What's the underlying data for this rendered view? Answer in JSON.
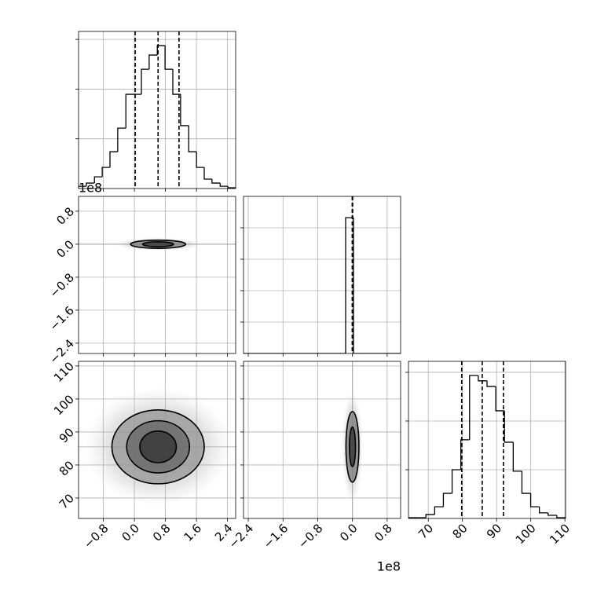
{
  "chart_data": [
    {
      "type": "histogram",
      "bins": [
        -1.44,
        -1.24,
        -1.03,
        -0.83,
        -0.63,
        -0.43,
        -0.22,
        -0.02,
        0.18,
        0.38,
        0.59,
        0.79,
        0.99,
        1.19,
        1.4,
        1.6,
        1.8,
        2.0,
        2.21,
        2.41,
        2.61
      ],
      "counts": [
        9,
        22,
        47,
        85,
        148,
        243,
        379,
        379,
        480,
        537,
        575,
        480,
        379,
        253,
        148,
        85,
        38,
        22,
        9,
        3
      ],
      "color": "#000000",
      "quantiles": [
        0.02,
        0.61,
        1.15
      ],
      "xlim": [
        -1.44,
        2.61
      ],
      "xticks": [
        -0.8,
        0,
        0.8,
        1.6,
        2.4
      ],
      "ylim": [
        0,
        632
      ],
      "yticks": [
        200,
        400,
        600
      ],
      "grid": true,
      "xtick_labels": false,
      "ytick_labels": false
    },
    {
      "type": "contour",
      "center": [
        0.61,
        0.0
      ],
      "contours": [
        {
          "rx": 0.71,
          "ry": 0.1
        },
        {
          "rx": 0.4,
          "ry": 0.06
        }
      ],
      "color": "#000000",
      "xlim": [
        -1.44,
        2.61
      ],
      "xticks": [
        -0.8,
        0,
        0.8,
        1.6,
        2.4
      ],
      "ylim": [
        -2.65,
        1.16
      ],
      "yticks": [
        {
          "value": -2.4,
          "label": "−2.4"
        },
        {
          "value": -1.6,
          "label": "−1.6"
        },
        {
          "value": -0.8,
          "label": "−0.8"
        },
        {
          "value": 0,
          "label": "0.0"
        },
        0.8
      ],
      "y_offset_text": "1e8",
      "grid": true,
      "xtick_labels": false,
      "ytick_labels": true
    },
    {
      "type": "histogram",
      "bins": [
        -2.51,
        -2.329,
        -2.148,
        -1.967,
        -1.786,
        -1.605,
        -1.424,
        -1.243,
        -1.062,
        -0.881,
        -0.7,
        -0.519,
        -0.338,
        -0.157,
        0.024,
        0.205,
        0.386,
        0.567,
        0.748,
        0.929,
        1.11
      ],
      "counts": [
        0,
        0,
        0,
        0,
        0,
        0,
        0,
        0,
        0,
        0,
        0,
        0,
        0,
        4321,
        0,
        0,
        0,
        0,
        0,
        0
      ],
      "color": "#000000",
      "quantiles": [
        -0.005,
        0.0,
        0.005
      ],
      "xlim": [
        -2.51,
        1.11
      ],
      "xticks": [
        -2.4,
        -1.6,
        -0.8,
        0,
        0.8
      ],
      "ylim": [
        0,
        5000
      ],
      "yticks": [
        1000,
        2000,
        3000,
        4000
      ],
      "grid": true,
      "xtick_labels": false,
      "ytick_labels": false
    },
    {
      "type": "contour",
      "center": [
        0.61,
        85.5
      ],
      "contours": [
        {
          "rx": 1.19,
          "ry": 11.2
        },
        {
          "rx": 0.81,
          "ry": 7.9
        },
        {
          "rx": 0.47,
          "ry": 4.8
        }
      ],
      "color": "#000000",
      "xlim": [
        -1.44,
        2.61
      ],
      "xticks": [
        {
          "value": -0.8,
          "label": "−0.8"
        },
        {
          "value": 0,
          "label": "0.0"
        },
        0.8,
        1.6,
        2.4
      ],
      "ylim": [
        63.8,
        111.4
      ],
      "yticks": [
        70,
        80,
        90,
        100,
        110
      ],
      "grid": true,
      "xtick_labels": true,
      "ytick_labels": true
    },
    {
      "type": "contour",
      "center": [
        0.0,
        85.5
      ],
      "contours": [
        {
          "rx": 0.15,
          "ry": 10.7
        },
        {
          "rx": 0.07,
          "ry": 6
        }
      ],
      "color": "#000000",
      "xlim": [
        -2.51,
        1.11
      ],
      "xticks": [
        {
          "value": -2.4,
          "label": "−2.4"
        },
        {
          "value": -1.6,
          "label": "−1.6"
        },
        {
          "value": -0.8,
          "label": "−0.8"
        },
        {
          "value": 0,
          "label": "0.0"
        },
        0.8
      ],
      "ylim": [
        63.8,
        111.4
      ],
      "yticks": [
        70,
        80,
        90,
        100,
        110
      ],
      "x_offset_text": "1e8",
      "grid": true,
      "xtick_labels": true,
      "ytick_labels": false
    },
    {
      "type": "histogram",
      "bins": [
        64.2,
        66.76,
        69.31,
        71.87,
        74.42,
        76.98,
        79.53,
        82.09,
        84.64,
        87.2,
        89.76,
        92.31,
        94.87,
        97.42,
        99.98,
        102.53,
        105.09,
        107.64,
        110.2
      ],
      "counts": [
        3,
        3,
        16,
        48,
        103,
        200,
        323,
        587,
        565,
        542,
        442,
        313,
        194,
        103,
        48,
        23,
        13,
        3
      ],
      "color": "#000000",
      "quantiles": [
        79.8,
        85.8,
        92.0
      ],
      "xlim": [
        64.2,
        110.2
      ],
      "xticks": [
        70,
        80,
        90,
        100,
        110
      ],
      "ylim": [
        0,
        645
      ],
      "yticks": [
        200,
        400,
        600
      ],
      "grid": true,
      "xtick_labels": true,
      "ytick_labels": false
    }
  ]
}
